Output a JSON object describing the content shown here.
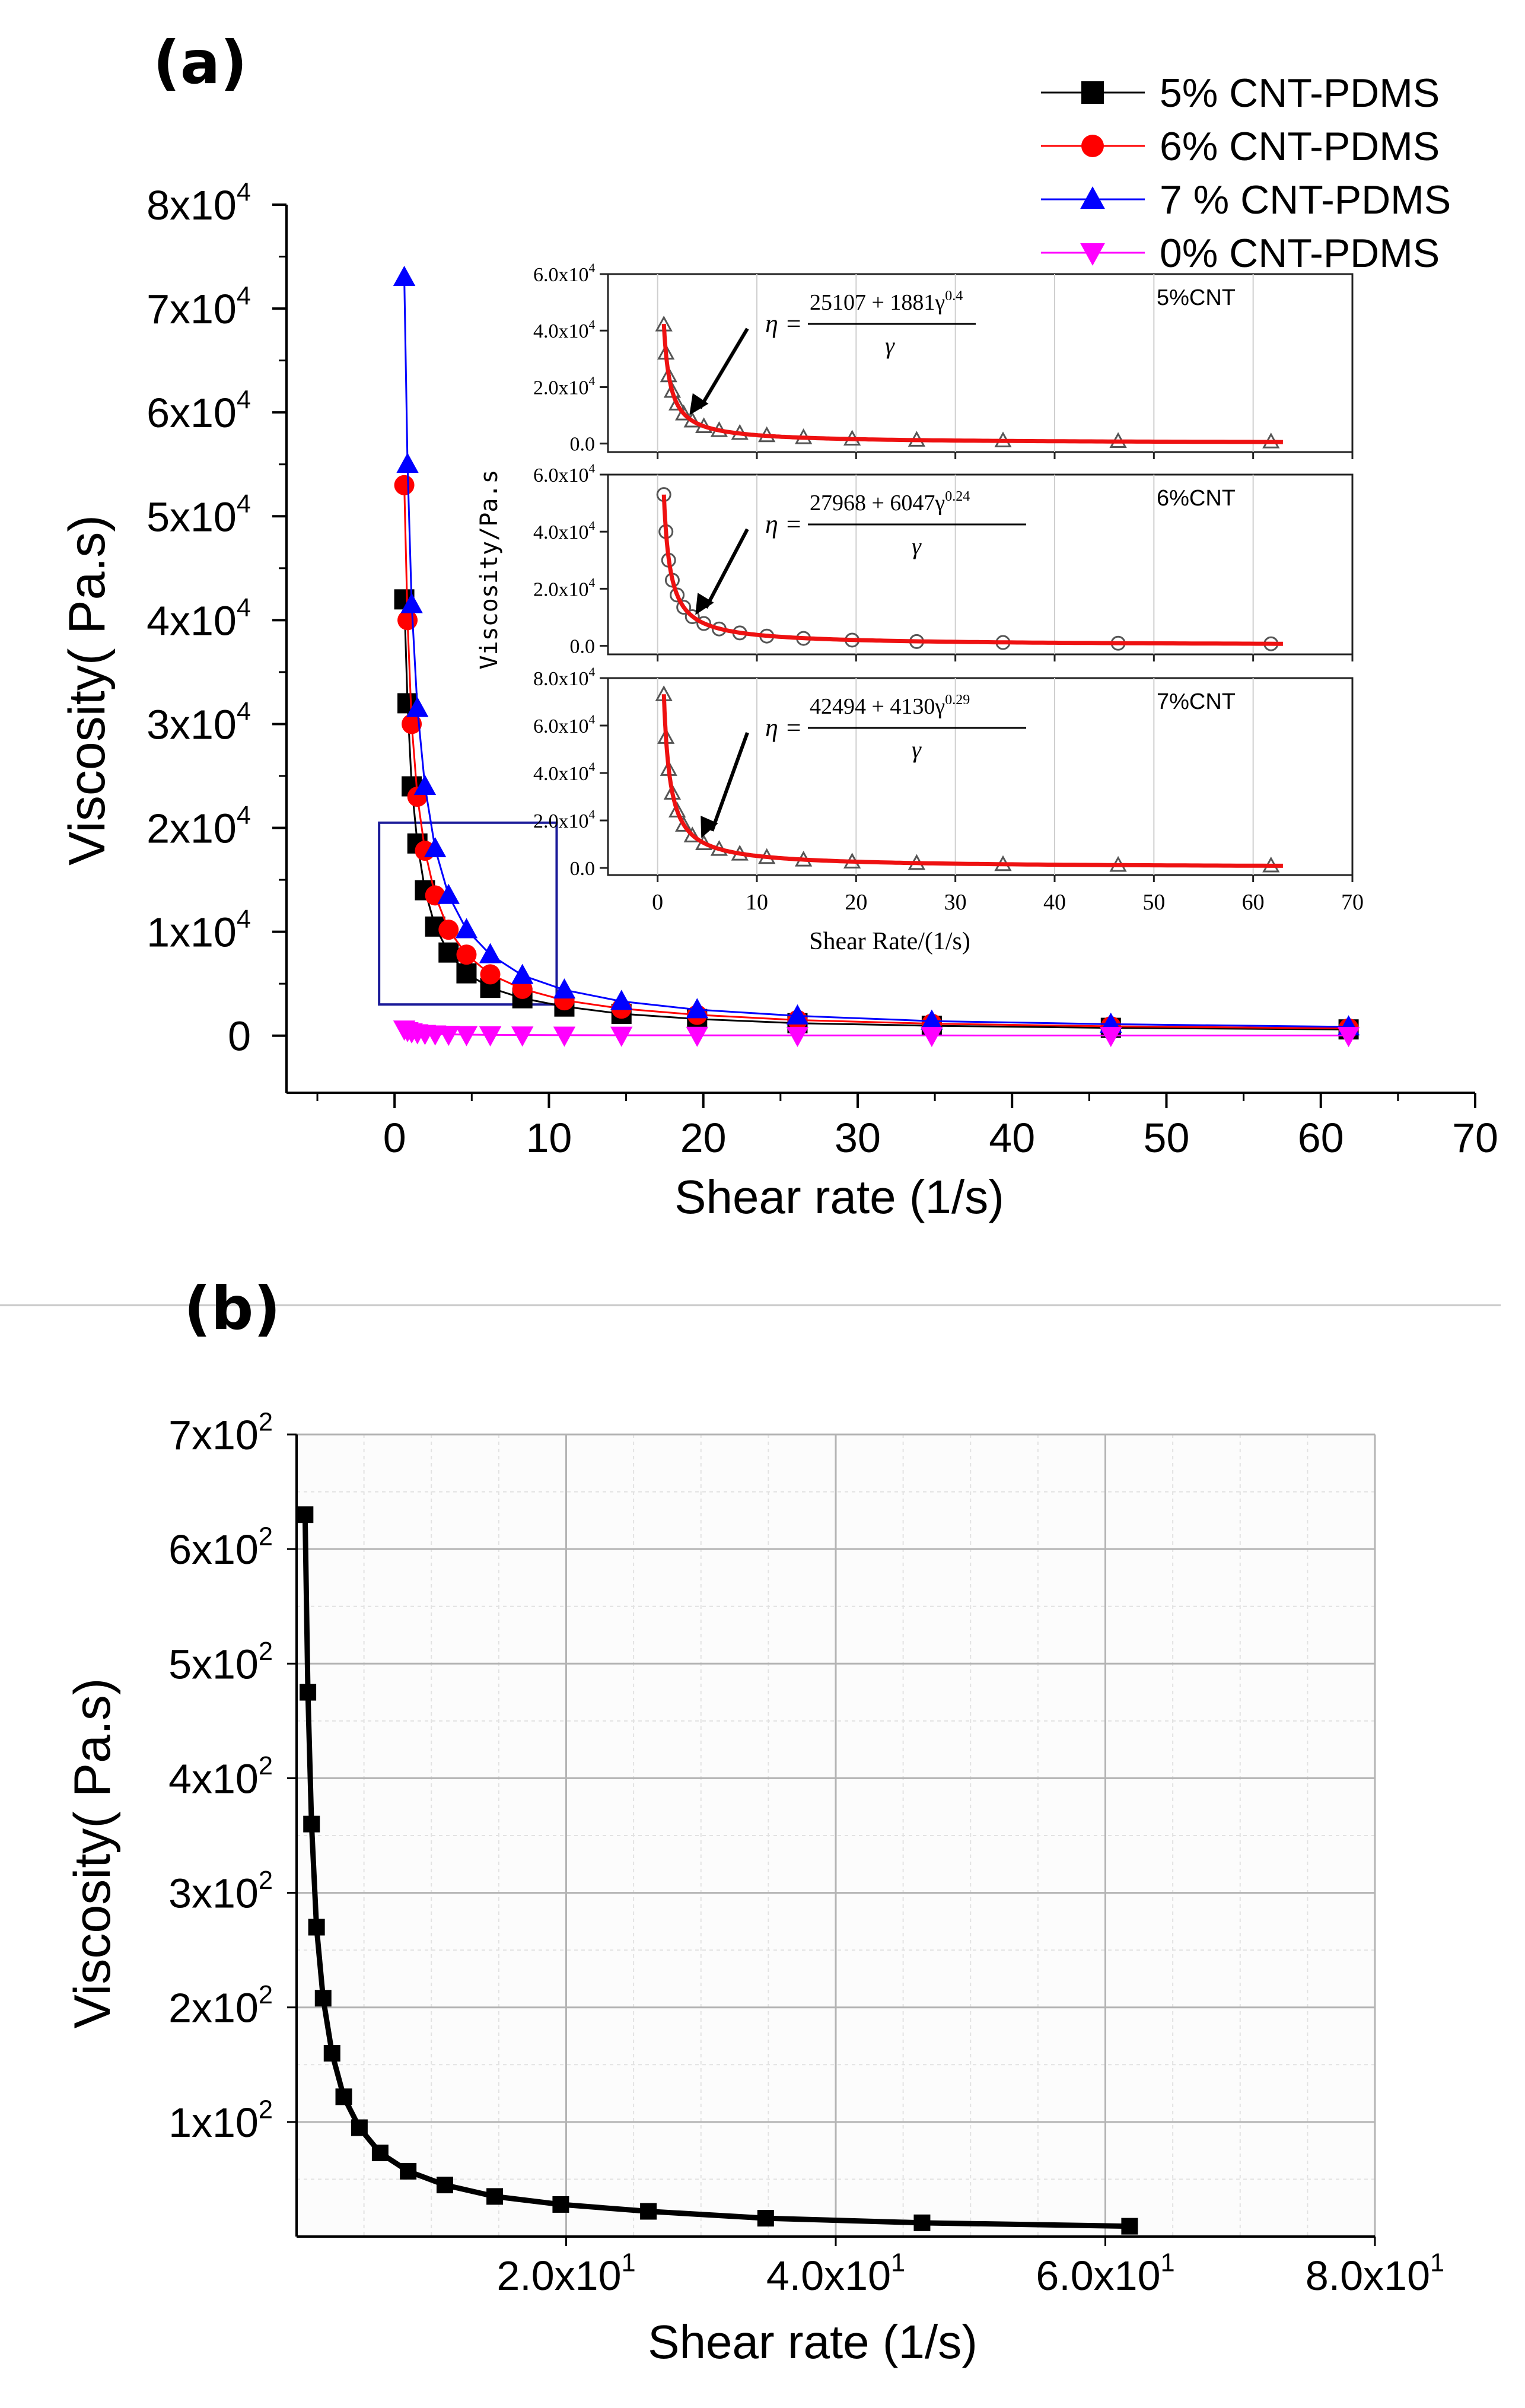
{
  "chart_data": [
    {
      "id": "a",
      "panel_label": "(a)",
      "type": "line",
      "xlabel": "Shear rate (1/s)",
      "ylabel": "Viscosity( Pa.s)",
      "xlim": [
        -7,
        70
      ],
      "ylim": [
        -5500,
        80000
      ],
      "x_ticks": [
        0,
        10,
        20,
        30,
        40,
        50,
        60,
        70
      ],
      "x_tick_labels": [
        "0",
        "10",
        "20",
        "30",
        "40",
        "50",
        "60",
        "70"
      ],
      "y_ticks": [
        0,
        10000,
        20000,
        30000,
        40000,
        50000,
        60000,
        70000,
        80000
      ],
      "y_tick_labels": [
        {
          "mant": "0",
          "exp": ""
        },
        {
          "mant": "1x10",
          "exp": "4"
        },
        {
          "mant": "2x10",
          "exp": "4"
        },
        {
          "mant": "3x10",
          "exp": "4"
        },
        {
          "mant": "4x10",
          "exp": "4"
        },
        {
          "mant": "5x10",
          "exp": "4"
        },
        {
          "mant": "6x10",
          "exp": "4"
        },
        {
          "mant": "7x10",
          "exp": "4"
        },
        {
          "mant": "8x10",
          "exp": "4"
        }
      ],
      "legend_position": "top-right",
      "zoom_box": {
        "x_range": [
          -1,
          10.5
        ],
        "y_range": [
          3000,
          20500
        ]
      },
      "x": [
        0.63,
        0.84,
        1.11,
        1.48,
        1.97,
        2.63,
        3.5,
        4.66,
        6.2,
        8.28,
        11.0,
        14.7,
        19.6,
        26.1,
        34.8,
        46.4,
        61.8
      ],
      "series": [
        {
          "name": "5% CNT-PDMS",
          "color": "#000000",
          "marker": "square",
          "values": [
            42000,
            32000,
            24000,
            18500,
            14000,
            10500,
            8000,
            6000,
            4600,
            3600,
            2800,
            2100,
            1600,
            1200,
            950,
            750,
            600
          ]
        },
        {
          "name": "6% CNT-PDMS",
          "color": "#ff0000",
          "marker": "circle",
          "values": [
            53000,
            40000,
            30000,
            23000,
            17800,
            13500,
            10200,
            7800,
            5900,
            4500,
            3400,
            2600,
            2000,
            1500,
            1150,
            900,
            700
          ]
        },
        {
          "name": "7 % CNT-PDMS",
          "color": "#0000ff",
          "marker": "triangle-up",
          "values": [
            73000,
            55000,
            41500,
            31500,
            24000,
            18000,
            13500,
            10200,
            7800,
            5800,
            4400,
            3300,
            2500,
            1900,
            1400,
            1100,
            850
          ]
        },
        {
          "name": "0% CNT-PDMS",
          "color": "#ff00ff",
          "marker": "triangle-down",
          "values": [
            630,
            480,
            360,
            270,
            210,
            160,
            120,
            95,
            75,
            60,
            45,
            35,
            28,
            22,
            16,
            12,
            9
          ]
        }
      ],
      "insets": [
        {
          "id": "5",
          "label": "5%CNT",
          "equation": {
            "lhs": "η =",
            "numerator": "25107 + 1881γ",
            "numerator_exp": "0.4",
            "denominator": "γ"
          },
          "y_tick_labels": [
            {
              "mant": "0.0",
              "exp": ""
            },
            {
              "mant": "2.0x10",
              "exp": "4"
            },
            {
              "mant": "4.0x10",
              "exp": "4"
            },
            {
              "mant": "6.0x10",
              "exp": "4"
            }
          ],
          "ylim": [
            -3000,
            60000
          ],
          "points": [
            42000,
            32000,
            24000,
            18500,
            14000,
            10500,
            8000,
            6000,
            4600,
            3600,
            2800,
            2100,
            1600,
            1200,
            950,
            750,
            600
          ],
          "fit": {
            "a": 25107,
            "b": 1881,
            "n": 0.4
          },
          "marker": "triangle-up"
        },
        {
          "id": "6",
          "label": "6%CNT",
          "equation": {
            "lhs": "η =",
            "numerator": "27968 + 6047γ",
            "numerator_exp": "0.24",
            "denominator": "γ"
          },
          "y_tick_labels": [
            {
              "mant": "0.0",
              "exp": ""
            },
            {
              "mant": "2.0x10",
              "exp": "4"
            },
            {
              "mant": "4.0x10",
              "exp": "4"
            },
            {
              "mant": "6.0x10",
              "exp": "4"
            }
          ],
          "ylim": [
            -3000,
            60000
          ],
          "points": [
            53000,
            40000,
            30000,
            23000,
            17800,
            13500,
            10200,
            7800,
            5900,
            4500,
            3400,
            2600,
            2000,
            1500,
            1150,
            900,
            700
          ],
          "fit": {
            "a": 27968,
            "b": 6047,
            "n": 0.24
          },
          "marker": "circle"
        },
        {
          "id": "7",
          "label": "7%CNT",
          "equation": {
            "lhs": "η =",
            "numerator": "42494 + 4130γ",
            "numerator_exp": "0.29",
            "denominator": "γ"
          },
          "y_tick_labels": [
            {
              "mant": "0.0",
              "exp": ""
            },
            {
              "mant": "2.0x10",
              "exp": "4"
            },
            {
              "mant": "4.0x10",
              "exp": "4"
            },
            {
              "mant": "6.0x10",
              "exp": "4"
            },
            {
              "mant": "8.0x10",
              "exp": "4"
            }
          ],
          "ylim": [
            -3000,
            80000
          ],
          "points": [
            73000,
            55000,
            41500,
            31500,
            24000,
            18000,
            13500,
            10200,
            7800,
            5800,
            4400,
            3300,
            2500,
            1900,
            1400,
            1100,
            850
          ],
          "fit": {
            "a": 42494,
            "b": 4130,
            "n": 0.29
          },
          "marker": "triangle-up"
        }
      ],
      "inset_xlim": [
        -5,
        70
      ],
      "inset_x_ticks": [
        0,
        10,
        20,
        30,
        40,
        50,
        60,
        70
      ],
      "inset_x_tick_labels": [
        "0",
        "10",
        "20",
        "30",
        "40",
        "50",
        "60",
        "70"
      ],
      "inset_xlabel": "Shear Rate/(1/s)",
      "inset_ylabel": "Viscosity/Pa.s"
    },
    {
      "id": "b",
      "panel_label": "(b)",
      "type": "line",
      "xlabel": "Shear rate (1/s)",
      "ylabel": "Viscosity( Pa.s)",
      "xlim": [
        0,
        80
      ],
      "ylim": [
        0,
        700
      ],
      "grid": true,
      "x_ticks": [
        20,
        40,
        60,
        80
      ],
      "x_tick_labels": [
        {
          "mant": "2.0x10",
          "exp": "1"
        },
        {
          "mant": "4.0x10",
          "exp": "1"
        },
        {
          "mant": "6.0x10",
          "exp": "1"
        },
        {
          "mant": "8.0x10",
          "exp": "1"
        }
      ],
      "y_ticks": [
        100,
        200,
        300,
        400,
        500,
        600,
        700
      ],
      "y_tick_labels": [
        {
          "mant": "1x10",
          "exp": "2"
        },
        {
          "mant": "2x10",
          "exp": "2"
        },
        {
          "mant": "3x10",
          "exp": "2"
        },
        {
          "mant": "4x10",
          "exp": "2"
        },
        {
          "mant": "5x10",
          "exp": "2"
        },
        {
          "mant": "6x10",
          "exp": "2"
        },
        {
          "mant": "7x10",
          "exp": "2"
        }
      ],
      "x": [
        0.63,
        0.84,
        1.11,
        1.48,
        1.97,
        2.63,
        3.5,
        4.66,
        6.2,
        8.28,
        11.0,
        14.7,
        19.6,
        26.1,
        34.8,
        46.4,
        61.8
      ],
      "series": [
        {
          "name": "0% CNT-PDMS",
          "color": "#000000",
          "marker": "square",
          "values": [
            630,
            475,
            360,
            270,
            208,
            160,
            122,
            95,
            73,
            57,
            45,
            35,
            28,
            22,
            16,
            12,
            9
          ]
        }
      ]
    }
  ]
}
